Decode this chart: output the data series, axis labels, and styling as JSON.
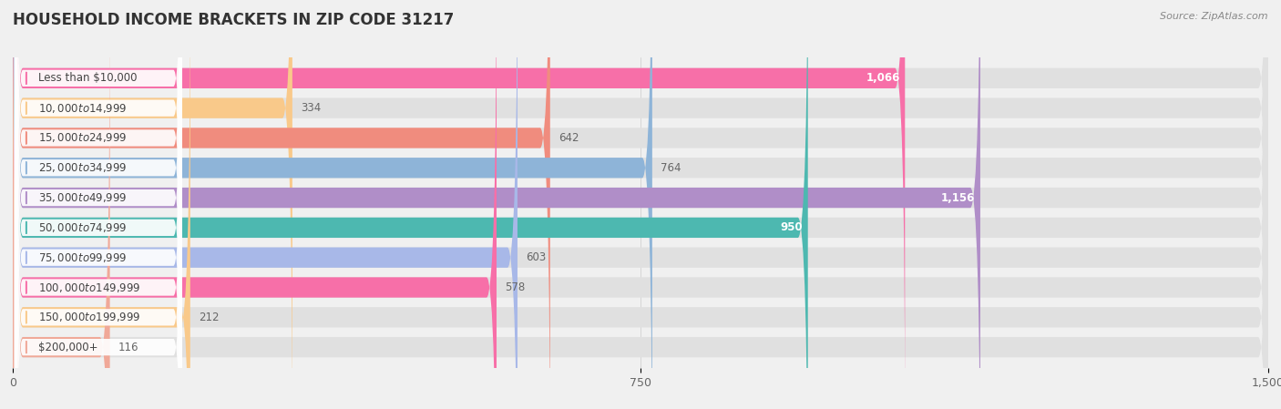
{
  "title": "HOUSEHOLD INCOME BRACKETS IN ZIP CODE 31217",
  "source": "Source: ZipAtlas.com",
  "categories": [
    "Less than $10,000",
    "$10,000 to $14,999",
    "$15,000 to $24,999",
    "$25,000 to $34,999",
    "$35,000 to $49,999",
    "$50,000 to $74,999",
    "$75,000 to $99,999",
    "$100,000 to $149,999",
    "$150,000 to $199,999",
    "$200,000+"
  ],
  "values": [
    1066,
    334,
    642,
    764,
    1156,
    950,
    603,
    578,
    212,
    116
  ],
  "colors": [
    "#f76fa8",
    "#f9c98a",
    "#f08c7e",
    "#8eb4d8",
    "#b08ec8",
    "#4db8b0",
    "#a8b8e8",
    "#f76fa8",
    "#f9c98a",
    "#f0a898"
  ],
  "xlim": [
    0,
    1500
  ],
  "xticks": [
    0,
    750,
    1500
  ],
  "background_color": "#f0f0f0",
  "bar_bg_color": "#e0e0e0",
  "title_fontsize": 12,
  "label_fontsize": 8.5,
  "value_fontsize": 8.5,
  "bar_height": 0.68,
  "value_inside_threshold": 900
}
